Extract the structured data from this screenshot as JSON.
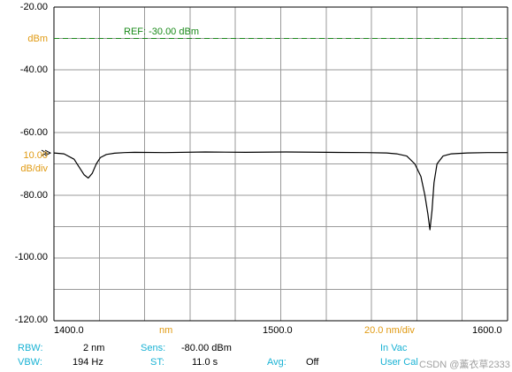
{
  "chart_data": {
    "type": "line",
    "y_ticks": [
      "-20.00",
      "-40.00",
      "-60.00",
      "-80.00",
      "-100.00",
      "-120.00"
    ],
    "x_ticks": [
      "1400.0",
      "1500.0",
      "1600.0"
    ],
    "xlim": [
      1385,
      1610
    ],
    "ylim": [
      -120,
      -20
    ],
    "grid": true,
    "ref_line": {
      "label": "REF: -30.00 dBm",
      "y": -30,
      "color": "#1a8a1a"
    },
    "trace_color": "#000000",
    "series": [
      {
        "x": [
          1385,
          1390,
          1395,
          1398,
          1400,
          1402,
          1404,
          1406,
          1408,
          1411,
          1415,
          1420,
          1425,
          1440,
          1460,
          1480,
          1500,
          1520,
          1540,
          1550,
          1555,
          1560,
          1564,
          1567,
          1569,
          1570.5,
          1571.5,
          1572.5,
          1573.5,
          1575,
          1578,
          1582,
          1590,
          1600,
          1610
        ],
        "y": [
          -66.5,
          -66.8,
          -68.5,
          -71.5,
          -73.5,
          -74.5,
          -73.0,
          -70.0,
          -68.0,
          -67.0,
          -66.6,
          -66.4,
          -66.3,
          -66.4,
          -66.2,
          -66.3,
          -66.2,
          -66.3,
          -66.4,
          -66.5,
          -66.8,
          -67.5,
          -70.0,
          -74.0,
          -80.0,
          -86.0,
          -91.0,
          -85.0,
          -76.0,
          -70.0,
          -67.5,
          -66.8,
          -66.5,
          -66.4,
          -66.4
        ]
      }
    ]
  },
  "axis": {
    "y_unit": "dBm",
    "scale_value": "10.00",
    "scale_unit": "dB/div",
    "x_unit": "nm",
    "x_div": "20.0 nm/div"
  },
  "footer": {
    "rbw_label": "RBW:",
    "rbw_value": "2 nm",
    "vbw_label": "VBW:",
    "vbw_value": "194 Hz",
    "sens_label": "Sens:",
    "sens_value": "-80.00 dBm",
    "st_label": "ST:",
    "st_value": "11.0 s",
    "avg_label": "Avg:",
    "avg_value": "Off",
    "in_vac": "In Vac",
    "user_cal": "User Cal"
  },
  "watermark": "CSDN @薰衣草2333",
  "colors": {
    "cyan": "#19b2d4",
    "orange": "#e09a12",
    "green": "#1a8a1a",
    "grid": "#9a9a9a"
  }
}
